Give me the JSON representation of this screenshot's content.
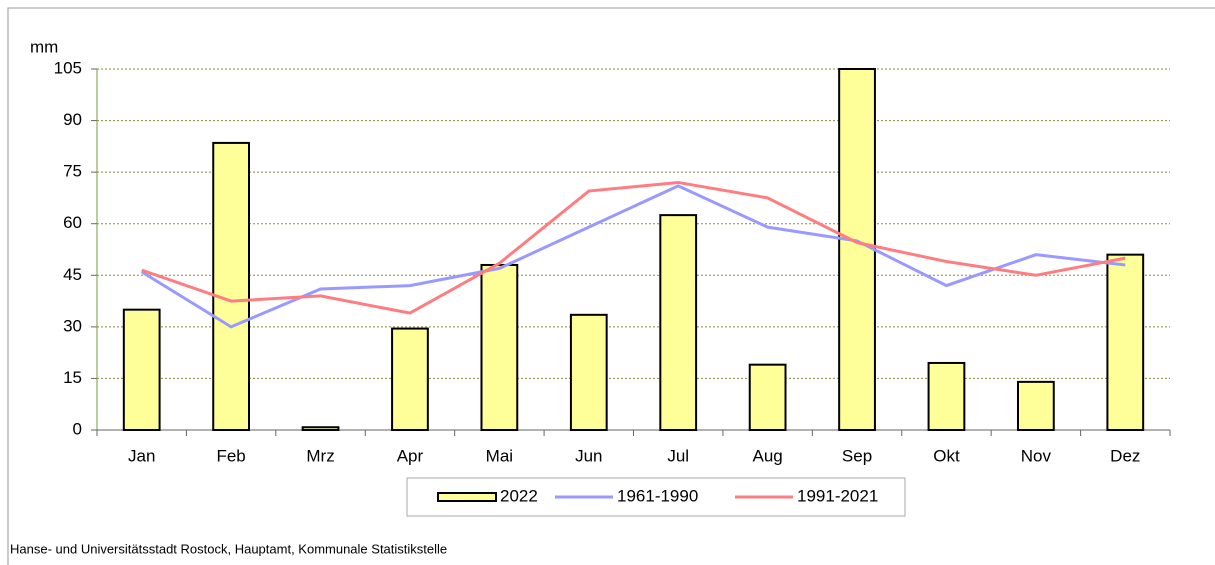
{
  "chart_data": {
    "type": "bar_line",
    "y_label": "mm",
    "categories": [
      "Jan",
      "Feb",
      "Mrz",
      "Apr",
      "Mai",
      "Jun",
      "Jul",
      "Aug",
      "Sep",
      "Okt",
      "Nov",
      "Dez"
    ],
    "series": [
      {
        "name": "2022",
        "type": "bar",
        "color": "#ffff99",
        "values": [
          35,
          83.5,
          0.8,
          29.5,
          48,
          33.5,
          62.5,
          19,
          105,
          19.5,
          14,
          51
        ]
      },
      {
        "name": "1961-1990",
        "type": "line",
        "color": "#9999ff",
        "values": [
          46,
          30,
          41,
          42,
          47,
          59,
          71,
          59,
          55,
          42,
          51,
          48
        ]
      },
      {
        "name": "1991-2021",
        "type": "line",
        "color": "#ff7c80",
        "values": [
          46.5,
          37.5,
          39,
          34,
          48.5,
          69.5,
          72,
          67.5,
          54.5,
          49,
          45,
          50
        ]
      }
    ],
    "ylim": [
      0,
      105
    ],
    "yticks": [
      0,
      15,
      30,
      45,
      60,
      75,
      90,
      105
    ],
    "grid": true,
    "source": "Hanse- und Universitätsstadt Rostock, Hauptamt, Kommunale Statistikstelle"
  }
}
